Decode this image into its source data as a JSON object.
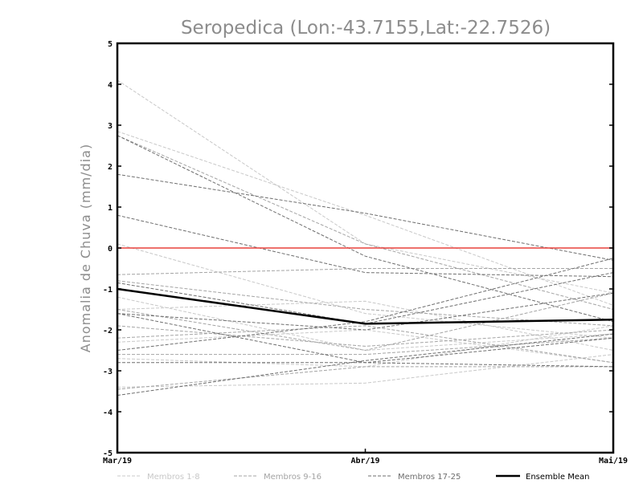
{
  "chart_data": {
    "type": "line",
    "title": "Seropedica (Lon:-43.7155,Lat:-22.7526)",
    "ylabel": "Anomalia de Chuva (mm/dia)",
    "xlabel": "",
    "categories": [
      "Mar/19",
      "Abr/19",
      "Mai/19"
    ],
    "ylim": [
      -5,
      5
    ],
    "yticks": [
      "5",
      "4",
      "3",
      "2",
      "1",
      "0",
      "-1",
      "-2",
      "-3",
      "-4",
      "-5"
    ],
    "ytick_values": [
      5,
      4,
      3,
      2,
      1,
      0,
      -1,
      -2,
      -3,
      -4,
      -5
    ],
    "reference_line": {
      "value": 0,
      "color": "#e8413c"
    },
    "groups": [
      {
        "name": "Membros 1-8",
        "color": "#c8c8c8",
        "dash": true
      },
      {
        "name": "Membros 9-16",
        "color": "#a4a4a4",
        "dash": true
      },
      {
        "name": "Membros 17-25",
        "color": "#6e6e6e",
        "dash": true
      },
      {
        "name": "Ensemble Mean",
        "color": "#000000",
        "dash": false
      }
    ],
    "series": [
      {
        "group": 0,
        "values": [
          4.1,
          0.1,
          -1.1
        ]
      },
      {
        "group": 0,
        "values": [
          2.85,
          0.8,
          -1.4
        ]
      },
      {
        "group": 0,
        "values": [
          -1.2,
          -2.5,
          -2.1
        ]
      },
      {
        "group": 0,
        "values": [
          -1.5,
          -1.3,
          -2.5
        ]
      },
      {
        "group": 0,
        "values": [
          -2.3,
          -2.0,
          -2.8
        ]
      },
      {
        "group": 0,
        "values": [
          -3.4,
          -3.3,
          -2.6
        ]
      },
      {
        "group": 0,
        "values": [
          0.1,
          -1.6,
          -2.2
        ]
      },
      {
        "group": 0,
        "values": [
          -2.7,
          -2.9,
          -1.9
        ]
      },
      {
        "group": 1,
        "values": [
          2.75,
          0.1,
          -1.5
        ]
      },
      {
        "group": 1,
        "values": [
          -0.8,
          -1.5,
          -1.9
        ]
      },
      {
        "group": 1,
        "values": [
          -1.9,
          -2.4,
          -2.0
        ]
      },
      {
        "group": 1,
        "values": [
          -2.6,
          -2.6,
          -2.2
        ]
      },
      {
        "group": 1,
        "values": [
          -3.45,
          -2.9,
          -2.9
        ]
      },
      {
        "group": 1,
        "values": [
          -1.5,
          -2.5,
          -1.1
        ]
      },
      {
        "group": 1,
        "values": [
          -2.2,
          -1.9,
          -2.8
        ]
      },
      {
        "group": 1,
        "values": [
          -0.65,
          -0.5,
          -0.5
        ]
      },
      {
        "group": 2,
        "values": [
          1.8,
          0.85,
          -0.3
        ]
      },
      {
        "group": 2,
        "values": [
          2.75,
          -0.2,
          -1.8
        ]
      },
      {
        "group": 2,
        "values": [
          0.8,
          -0.6,
          -0.7
        ]
      },
      {
        "group": 2,
        "values": [
          -0.85,
          -1.85,
          -0.6
        ]
      },
      {
        "group": 2,
        "values": [
          -1.6,
          -2.8,
          -2.2
        ]
      },
      {
        "group": 2,
        "values": [
          -2.5,
          -1.8,
          -0.25
        ]
      },
      {
        "group": 2,
        "values": [
          -2.8,
          -2.8,
          -2.9
        ]
      },
      {
        "group": 2,
        "values": [
          -3.6,
          -2.75,
          -2.1
        ]
      },
      {
        "group": 2,
        "values": [
          -1.6,
          -2.0,
          -1.1
        ]
      },
      {
        "group": 3,
        "values": [
          -1.0,
          -1.85,
          -1.75
        ]
      }
    ]
  }
}
